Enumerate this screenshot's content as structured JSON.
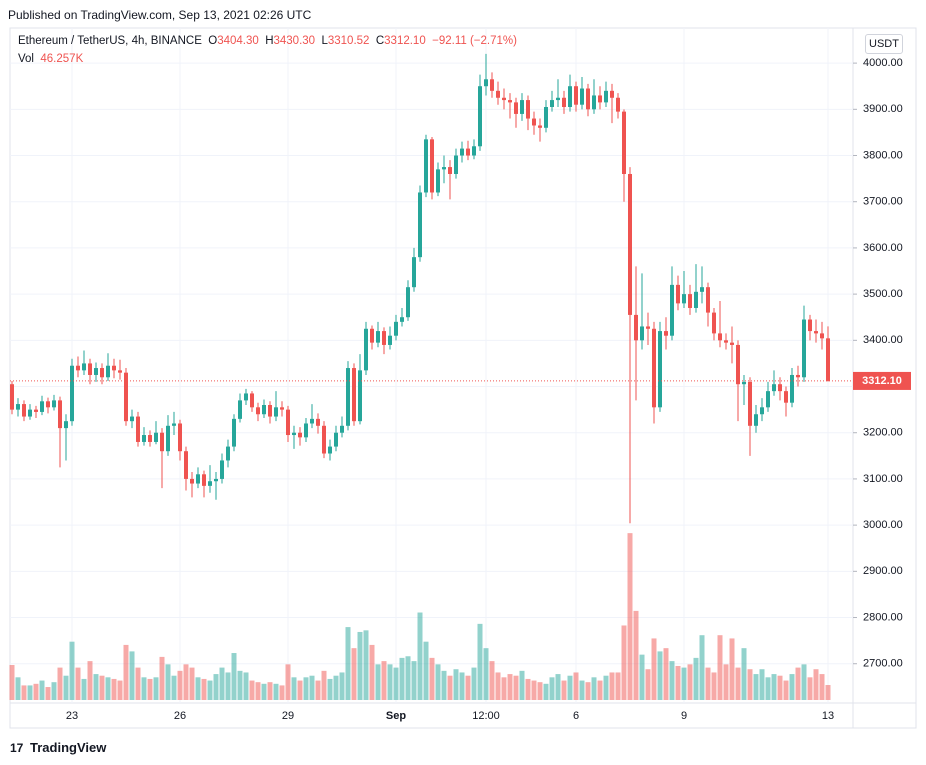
{
  "header": "Published on TradingView.com, Sep 13, 2021 02:26 UTC",
  "footer": "TradingView",
  "chart_data": {
    "type": "candlestick",
    "title": "Ethereum / TetherUS, 4h, BINANCE",
    "ohlc_letters": [
      "O",
      "H",
      "L",
      "C"
    ],
    "last_bar_labels": [
      "3404.30",
      "3430.30",
      "3310.52",
      "3312.10"
    ],
    "change_label": "−92.11 (−2.71%)",
    "volume_title": "Vol",
    "volume_label": "46.257K",
    "unit": "USDT",
    "price_label": "3312.10",
    "up_color": "#26a69a",
    "down_color": "#ef5350",
    "grid": true,
    "ylim": [
      2615,
      4076
    ],
    "yticks": [
      {
        "value": 2700,
        "label": "2700.00"
      },
      {
        "value": 2800,
        "label": "2800.00"
      },
      {
        "value": 2900,
        "label": "2900.00"
      },
      {
        "value": 3000,
        "label": "3000.00"
      },
      {
        "value": 3100,
        "label": "3100.00"
      },
      {
        "value": 3200,
        "label": "3200.00"
      },
      {
        "value": 3300,
        "label": "3300.00"
      },
      {
        "value": 3400,
        "label": "3400.00"
      },
      {
        "value": 3500,
        "label": "3500.00"
      },
      {
        "value": 3600,
        "label": "3600.00"
      },
      {
        "value": 3700,
        "label": "3700.00"
      },
      {
        "value": 3800,
        "label": "3800.00"
      },
      {
        "value": 3900,
        "label": "3900.00"
      },
      {
        "value": 4000,
        "label": "4000.00"
      }
    ],
    "categories": [
      null,
      null,
      null,
      null,
      null,
      null,
      null,
      null,
      null,
      null,
      "23",
      null,
      null,
      null,
      null,
      null,
      null,
      null,
      null,
      null,
      null,
      null,
      null,
      null,
      null,
      null,
      null,
      null,
      "26",
      null,
      null,
      null,
      null,
      null,
      null,
      null,
      null,
      null,
      null,
      null,
      null,
      null,
      null,
      null,
      null,
      null,
      "29",
      null,
      null,
      null,
      null,
      null,
      null,
      null,
      null,
      null,
      null,
      null,
      null,
      null,
      null,
      null,
      null,
      null,
      "Sep",
      null,
      null,
      null,
      null,
      null,
      null,
      null,
      null,
      null,
      null,
      null,
      null,
      null,
      null,
      "12:00",
      null,
      null,
      null,
      null,
      null,
      null,
      null,
      null,
      null,
      null,
      null,
      null,
      null,
      null,
      "6",
      null,
      null,
      null,
      null,
      null,
      null,
      null,
      null,
      null,
      null,
      null,
      null,
      null,
      null,
      null,
      null,
      null,
      "9",
      null,
      null,
      null,
      null,
      null,
      null,
      null,
      null,
      null,
      null,
      null,
      null,
      null,
      null,
      null,
      null,
      null,
      null,
      null,
      null,
      null,
      null,
      null,
      "13"
    ],
    "open": [
      3305,
      3250,
      3262,
      3235,
      3250,
      3245,
      3268,
      3255,
      3270,
      3210,
      3225,
      3345,
      3335,
      3350,
      3325,
      3340,
      3320,
      3345,
      3335,
      3330,
      3225,
      3235,
      3180,
      3195,
      3180,
      3200,
      3160,
      3215,
      3220,
      3160,
      3100,
      3090,
      3110,
      3085,
      3095,
      3100,
      3140,
      3170,
      3230,
      3270,
      3285,
      3255,
      3240,
      3260,
      3235,
      3255,
      3250,
      3195,
      3200,
      3190,
      3220,
      3230,
      3215,
      3155,
      3170,
      3200,
      3215,
      3340,
      3225,
      3335,
      3425,
      3395,
      3420,
      3390,
      3410,
      3440,
      3450,
      3515,
      3580,
      3720,
      3835,
      3720,
      3770,
      3775,
      3760,
      3800,
      3815,
      3800,
      3820,
      3950,
      3965,
      3940,
      3925,
      3920,
      3915,
      3890,
      3920,
      3880,
      3865,
      3860,
      3905,
      3920,
      3925,
      3905,
      3950,
      3910,
      3945,
      3900,
      3930,
      3915,
      3940,
      3925,
      3895,
      3760,
      3455,
      3400,
      3430,
      3425,
      3255,
      3420,
      3410,
      3520,
      3480,
      3500,
      3470,
      3505,
      3515,
      3460,
      3415,
      3400,
      3395,
      3390,
      3305,
      3310,
      3215,
      3240,
      3255,
      3290,
      3305,
      3290,
      3265,
      3325,
      3320,
      3445,
      3420,
      3415,
      3404.3
    ],
    "high": [
      3312,
      3275,
      3270,
      3262,
      3258,
      3280,
      3276,
      3282,
      3278,
      3240,
      3360,
      3365,
      3378,
      3360,
      3352,
      3350,
      3372,
      3360,
      3358,
      3340,
      3250,
      3245,
      3212,
      3205,
      3225,
      3210,
      3238,
      3245,
      3228,
      3170,
      3115,
      3125,
      3118,
      3130,
      3115,
      3155,
      3185,
      3240,
      3285,
      3295,
      3290,
      3265,
      3272,
      3268,
      3290,
      3268,
      3258,
      3215,
      3212,
      3232,
      3262,
      3242,
      3225,
      3185,
      3215,
      3235,
      3355,
      3350,
      3370,
      3440,
      3432,
      3440,
      3428,
      3430,
      3455,
      3470,
      3530,
      3600,
      3735,
      3845,
      3840,
      3785,
      3800,
      3790,
      3815,
      3830,
      3832,
      3835,
      3975,
      4020,
      3980,
      3960,
      3945,
      3935,
      3925,
      3935,
      3930,
      3895,
      3880,
      3920,
      3940,
      3965,
      3940,
      3975,
      3960,
      3970,
      3955,
      3965,
      3950,
      3960,
      3955,
      3935,
      3900,
      3775,
      3560,
      3545,
      3460,
      3440,
      3440,
      3450,
      3560,
      3540,
      3550,
      3520,
      3565,
      3560,
      3525,
      3470,
      3485,
      3415,
      3430,
      3400,
      3325,
      3320,
      3260,
      3275,
      3310,
      3335,
      3320,
      3300,
      3340,
      3345,
      3475,
      3455,
      3445,
      3440,
      3430.3
    ],
    "low": [
      3240,
      3235,
      3225,
      3228,
      3232,
      3238,
      3242,
      3248,
      3125,
      3140,
      3215,
      3320,
      3325,
      3305,
      3310,
      3305,
      3312,
      3318,
      3315,
      3215,
      3210,
      3170,
      3172,
      3170,
      3175,
      3080,
      3150,
      3195,
      3140,
      3075,
      3060,
      3080,
      3060,
      3070,
      3055,
      3090,
      3125,
      3160,
      3222,
      3260,
      3245,
      3225,
      3232,
      3220,
      3225,
      3235,
      3180,
      3165,
      3172,
      3180,
      3210,
      3198,
      3145,
      3140,
      3160,
      3190,
      3205,
      3215,
      3218,
      3325,
      3380,
      3385,
      3370,
      3380,
      3400,
      3430,
      3442,
      3505,
      3570,
      3710,
      3705,
      3712,
      3740,
      3705,
      3750,
      3785,
      3790,
      3792,
      3810,
      3930,
      3925,
      3910,
      3900,
      3880,
      3860,
      3875,
      3855,
      3845,
      3830,
      3850,
      3895,
      3905,
      3890,
      3895,
      3895,
      3900,
      3885,
      3890,
      3900,
      3905,
      3870,
      3880,
      3700,
      3004,
      3270,
      3380,
      3390,
      3220,
      3245,
      3380,
      3400,
      3465,
      3470,
      3455,
      3460,
      3480,
      3430,
      3400,
      3385,
      3380,
      3350,
      3225,
      3260,
      3150,
      3200,
      3225,
      3245,
      3280,
      3270,
      3235,
      3255,
      3300,
      3310,
      3400,
      3395,
      3380,
      3310.52
    ],
    "close": [
      3250,
      3262,
      3235,
      3250,
      3245,
      3268,
      3255,
      3270,
      3210,
      3225,
      3345,
      3335,
      3350,
      3325,
      3340,
      3320,
      3345,
      3335,
      3330,
      3225,
      3235,
      3180,
      3195,
      3180,
      3200,
      3160,
      3215,
      3220,
      3160,
      3100,
      3090,
      3110,
      3085,
      3095,
      3100,
      3140,
      3170,
      3230,
      3270,
      3285,
      3255,
      3240,
      3260,
      3235,
      3255,
      3250,
      3195,
      3200,
      3190,
      3220,
      3230,
      3215,
      3155,
      3170,
      3200,
      3215,
      3340,
      3225,
      3335,
      3425,
      3395,
      3420,
      3390,
      3410,
      3440,
      3450,
      3515,
      3580,
      3720,
      3835,
      3720,
      3770,
      3775,
      3760,
      3800,
      3815,
      3800,
      3820,
      3950,
      3965,
      3940,
      3925,
      3920,
      3915,
      3890,
      3920,
      3880,
      3865,
      3860,
      3905,
      3920,
      3925,
      3905,
      3950,
      3910,
      3945,
      3900,
      3930,
      3915,
      3940,
      3925,
      3895,
      3760,
      3455,
      3400,
      3430,
      3425,
      3255,
      3420,
      3410,
      3520,
      3480,
      3500,
      3470,
      3505,
      3515,
      3460,
      3415,
      3400,
      3395,
      3390,
      3305,
      3310,
      3215,
      3240,
      3255,
      3290,
      3305,
      3290,
      3265,
      3325,
      3320,
      3445,
      3420,
      3415,
      3404.3,
      3312.1
    ],
    "volume": [
      108,
      70,
      45,
      45,
      50,
      60,
      40,
      55,
      100,
      75,
      180,
      100,
      65,
      120,
      80,
      75,
      70,
      65,
      60,
      170,
      150,
      100,
      70,
      65,
      70,
      133,
      110,
      75,
      90,
      110,
      100,
      70,
      65,
      60,
      80,
      100,
      85,
      145,
      90,
      85,
      60,
      55,
      50,
      55,
      50,
      45,
      110,
      70,
      60,
      70,
      75,
      60,
      90,
      65,
      75,
      85,
      225,
      160,
      210,
      215,
      170,
      110,
      120,
      110,
      100,
      130,
      135,
      120,
      270,
      180,
      130,
      110,
      90,
      75,
      95,
      85,
      75,
      100,
      235,
      160,
      120,
      85,
      70,
      80,
      75,
      90,
      65,
      60,
      55,
      50,
      70,
      80,
      60,
      75,
      85,
      60,
      55,
      70,
      60,
      75,
      85,
      85,
      230,
      515,
      275,
      140,
      95,
      190,
      150,
      160,
      120,
      105,
      100,
      110,
      130,
      200,
      100,
      85,
      200,
      110,
      190,
      100,
      160,
      95,
      80,
      95,
      70,
      80,
      75,
      60,
      80,
      100,
      110,
      70,
      95,
      80,
      46.257
    ]
  }
}
